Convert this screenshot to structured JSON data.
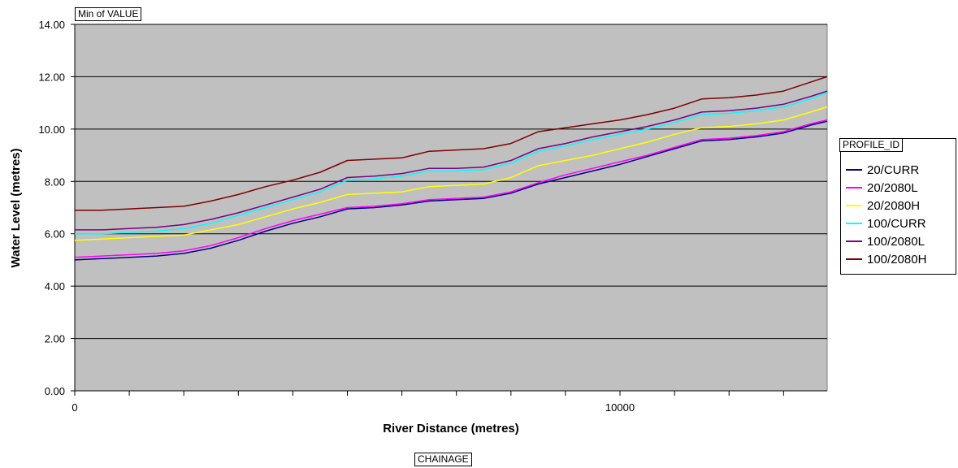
{
  "page_field_label": "Min of VALUE",
  "category_field_label": "CHAINAGE",
  "legend": {
    "title": "PROFILE_ID"
  },
  "chart_data": {
    "type": "line",
    "title": "",
    "xlabel": "River Distance (metres)",
    "ylabel": "Water Level (metres)",
    "xlim": [
      0,
      13800
    ],
    "ylim": [
      0,
      14
    ],
    "yticks": [
      "0.00",
      "2.00",
      "4.00",
      "6.00",
      "8.00",
      "10.00",
      "12.00",
      "14.00"
    ],
    "xtick_labels": [
      {
        "x": 0,
        "label": "0"
      },
      {
        "x": 10000,
        "label": "10000"
      }
    ],
    "plot_background": "#c0c0c0",
    "grid": "horizontal",
    "legend_position": "right",
    "x": [
      0,
      500,
      1000,
      1500,
      2000,
      2500,
      3000,
      3500,
      4000,
      4500,
      5000,
      5500,
      6000,
      6500,
      7000,
      7500,
      8000,
      8500,
      9000,
      9500,
      10000,
      10500,
      11000,
      11500,
      12000,
      12500,
      13000,
      13500,
      13800
    ],
    "series": [
      {
        "name": "20/CURR",
        "color": "#000080",
        "values": [
          5.0,
          5.05,
          5.1,
          5.15,
          5.25,
          5.45,
          5.75,
          6.1,
          6.4,
          6.65,
          6.95,
          7.0,
          7.1,
          7.25,
          7.3,
          7.35,
          7.55,
          7.9,
          8.15,
          8.4,
          8.65,
          8.95,
          9.25,
          9.55,
          9.6,
          9.7,
          9.85,
          10.15,
          10.3
        ]
      },
      {
        "name": "20/2080L",
        "color": "#ff00ff",
        "values": [
          5.1,
          5.15,
          5.2,
          5.25,
          5.35,
          5.55,
          5.85,
          6.2,
          6.5,
          6.75,
          7.0,
          7.05,
          7.15,
          7.3,
          7.35,
          7.4,
          7.6,
          7.95,
          8.25,
          8.5,
          8.75,
          9.0,
          9.3,
          9.6,
          9.65,
          9.75,
          9.9,
          10.2,
          10.35
        ]
      },
      {
        "name": "20/2080H",
        "color": "#ffff00",
        "values": [
          5.75,
          5.8,
          5.85,
          5.9,
          5.95,
          6.15,
          6.35,
          6.65,
          6.95,
          7.2,
          7.5,
          7.55,
          7.6,
          7.8,
          7.85,
          7.9,
          8.15,
          8.6,
          8.8,
          9.0,
          9.25,
          9.5,
          9.8,
          10.05,
          10.1,
          10.2,
          10.35,
          10.65,
          10.85
        ]
      },
      {
        "name": "100/CURR",
        "color": "#00ffff",
        "values": [
          6.0,
          6.0,
          6.05,
          6.1,
          6.2,
          6.4,
          6.7,
          7.0,
          7.3,
          7.6,
          8.05,
          8.1,
          8.2,
          8.4,
          8.4,
          8.45,
          8.7,
          9.15,
          9.35,
          9.6,
          9.8,
          10.0,
          10.25,
          10.55,
          10.6,
          10.7,
          10.85,
          11.15,
          11.4
        ]
      },
      {
        "name": "100/2080L",
        "color": "#800080",
        "values": [
          6.15,
          6.15,
          6.2,
          6.25,
          6.35,
          6.55,
          6.8,
          7.1,
          7.4,
          7.7,
          8.15,
          8.2,
          8.3,
          8.5,
          8.5,
          8.55,
          8.8,
          9.25,
          9.45,
          9.7,
          9.9,
          10.1,
          10.35,
          10.65,
          10.7,
          10.8,
          10.95,
          11.25,
          11.45
        ]
      },
      {
        "name": "100/2080H",
        "color": "#800000",
        "values": [
          6.9,
          6.9,
          6.95,
          7.0,
          7.05,
          7.25,
          7.5,
          7.8,
          8.05,
          8.35,
          8.8,
          8.85,
          8.9,
          9.15,
          9.2,
          9.25,
          9.45,
          9.9,
          10.05,
          10.2,
          10.35,
          10.55,
          10.8,
          11.15,
          11.2,
          11.3,
          11.45,
          11.8,
          12.0
        ]
      }
    ]
  }
}
